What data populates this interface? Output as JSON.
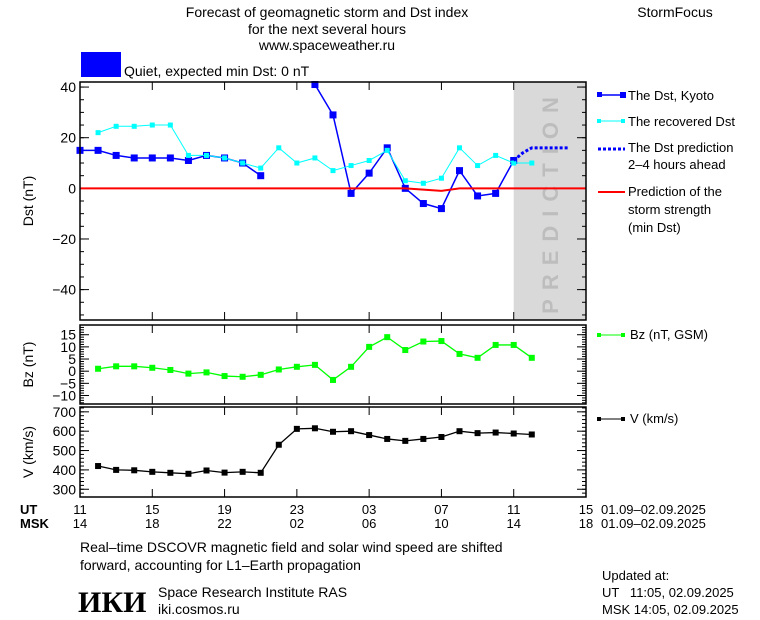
{
  "header": {
    "title_line1": "Forecast of geomagnetic storm and Dst index",
    "title_line2": "for the next several hours",
    "url": "www.spaceweather.ru",
    "brand": "StormFocus",
    "status_text": "Quiet, expected min Dst: 0 nT",
    "status_color": "#0000ff"
  },
  "legend": {
    "kyoto": "The Dst, Kyoto",
    "recovered": "The recovered Dst",
    "prediction_line1": "The Dst prediction",
    "prediction_line2": "2–4 hours ahead",
    "storm_line1": "Prediction of the",
    "storm_line2": "storm strength",
    "storm_line3": "(min Dst)",
    "bz": "Bz (nT, GSM)",
    "v": "V (km/s)"
  },
  "axis": {
    "ut_label": "UT",
    "msk_label": "MSK",
    "ut_ticks": [
      "11",
      "15",
      "19",
      "23",
      "03",
      "07",
      "11",
      "15"
    ],
    "msk_ticks": [
      "14",
      "18",
      "22",
      "02",
      "06",
      "10",
      "14",
      "18"
    ],
    "date_range_ut": "01.09–02.09.2025",
    "date_range_msk": "01.09–02.09.2025",
    "prediction_label": "PREDICTION"
  },
  "footer": {
    "note_line1": "Real–time DSCOVR magnetic field and solar wind speed are shifted",
    "note_line2": "forward, accounting for L1–Earth propagation",
    "logo_text": "ИКИ",
    "institute": "Space Research Institute RAS",
    "institute_url": "iki.cosmos.ru",
    "updated_label": "Updated at:",
    "updated_ut": "UT   11:05, 02.09.2025",
    "updated_msk": "MSK 14:05, 02.09.2025"
  },
  "chart_data": [
    {
      "type": "line",
      "ylabel": "Dst (nT)",
      "xlim": [
        "2025-09-01T11:00",
        "2025-09-02T15:00"
      ],
      "ylim": [
        -52,
        42
      ],
      "yticks": [
        40,
        20,
        0,
        -20,
        -40
      ],
      "prediction_region": [
        "2025-09-02T11:00",
        "2025-09-02T15:00"
      ],
      "colors": {
        "kyoto": "#0000ff",
        "recovered": "#00ffff",
        "prediction": "#0000ff",
        "storm": "#ff0000",
        "shade": "#d9d9d9"
      },
      "series": [
        {
          "name": "The Dst, Kyoto",
          "start": "2025-09-01T11:00",
          "values": [
            15,
            15,
            13,
            12,
            12,
            12,
            11,
            13,
            12,
            10,
            5,
            null,
            null,
            41,
            29,
            -2,
            6,
            16,
            0,
            -6,
            -8,
            7,
            -3,
            -2,
            11
          ]
        },
        {
          "name": "The recovered Dst",
          "start": "2025-09-01T12:00",
          "values": [
            22,
            24.5,
            24.5,
            25,
            25,
            13,
            13,
            12,
            10,
            8,
            16,
            10,
            12,
            7,
            9,
            11,
            15,
            3,
            2,
            4,
            16,
            9,
            13,
            10,
            10
          ]
        },
        {
          "name": "The Dst prediction 2–4 hours ahead",
          "x": [
            "2025-09-02T11:00",
            "2025-09-02T11:30",
            "2025-09-02T12:00",
            "2025-09-02T14:00"
          ],
          "values": [
            11,
            14,
            16,
            16
          ]
        },
        {
          "name": "Prediction of the storm strength (min Dst)",
          "x": [
            "2025-09-01T11:00",
            "2025-09-02T05:00",
            "2025-09-02T06:00",
            "2025-09-02T07:00",
            "2025-09-02T08:00",
            "2025-09-02T15:00"
          ],
          "values": [
            0,
            0,
            -0.5,
            -1,
            0,
            0
          ]
        }
      ]
    },
    {
      "type": "line",
      "ylabel": "Bz (nT)",
      "ylim": [
        -13.5,
        19
      ],
      "yticks": [
        15,
        10,
        5,
        0,
        -5,
        -10
      ],
      "colors": {
        "bz": "#00ff00"
      },
      "series": [
        {
          "name": "Bz (nT, GSM)",
          "start": "2025-09-01T12:00",
          "values": [
            1,
            2,
            2,
            1.4,
            0.5,
            -1,
            -0.5,
            -2,
            -2.3,
            -1.5,
            0.7,
            1.8,
            2.6,
            -3.6,
            1.8,
            10,
            14,
            8.7,
            12.2,
            12.4,
            7.1,
            5.5,
            10.8,
            10.8,
            5.5
          ]
        }
      ]
    },
    {
      "type": "line",
      "ylabel": "V (km/s)",
      "ylim": [
        260,
        725
      ],
      "yticks": [
        700,
        600,
        500,
        400,
        300
      ],
      "colors": {
        "v": "#000000"
      },
      "series": [
        {
          "name": "V (km/s)",
          "start": "2025-09-01T12:00",
          "values": [
            420,
            400,
            398,
            390,
            385,
            380,
            397,
            386,
            390,
            385,
            530,
            612,
            615,
            597,
            600,
            580,
            560,
            550,
            560,
            570,
            600,
            590,
            593,
            588,
            583
          ]
        }
      ]
    }
  ]
}
